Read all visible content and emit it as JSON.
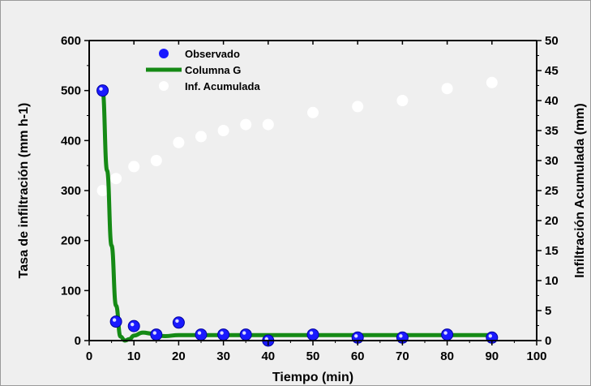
{
  "chart_data": {
    "type": "line",
    "xlabel": "Tiempo (min)",
    "ylabel_left": "Tasa de infiltración (mm h-1)",
    "ylabel_right": "Infiltración Acumulada (mm)",
    "xlim": [
      0,
      100
    ],
    "ylim_left": [
      0,
      600
    ],
    "ylim_right": [
      0,
      50
    ],
    "x_ticks": [
      "0",
      "10",
      "20",
      "30",
      "40",
      "50",
      "60",
      "70",
      "80",
      "90",
      "100"
    ],
    "y_left_ticks": [
      "0",
      "100",
      "200",
      "300",
      "400",
      "500",
      "600"
    ],
    "y_right_ticks": [
      "0",
      "5",
      "10",
      "15",
      "20",
      "25",
      "30",
      "35",
      "40",
      "45",
      "50"
    ],
    "grid": false,
    "legend_position": "top-left",
    "legend": [
      "Observado",
      "Columna G",
      "Inf. Acumulada"
    ],
    "series": [
      {
        "name": "Observado",
        "kind": "scatter",
        "axis": "left",
        "color": "#1a1aff",
        "x": [
          3,
          6,
          10,
          15,
          20,
          25,
          30,
          35,
          40,
          50,
          60,
          70,
          80,
          90
        ],
        "y": [
          500,
          38,
          29,
          12,
          36,
          12,
          12,
          12,
          0,
          12,
          6,
          6,
          12,
          6
        ]
      },
      {
        "name": "Columna G",
        "kind": "line",
        "axis": "left",
        "color": "#158a15",
        "x": [
          3,
          4,
          5,
          6,
          7,
          8,
          9,
          10,
          12,
          14,
          15,
          17,
          20,
          25,
          30,
          40,
          50,
          60,
          70,
          80,
          90
        ],
        "y": [
          500,
          340,
          190,
          70,
          8,
          0,
          3,
          10,
          16,
          14,
          10,
          9,
          11,
          11,
          11,
          11,
          11,
          11,
          11,
          11,
          11
        ]
      },
      {
        "name": "Inf. Acumulada",
        "kind": "scatter",
        "axis": "right",
        "color": "#ffffff",
        "x": [
          3,
          6,
          10,
          15,
          20,
          25,
          30,
          35,
          40,
          50,
          60,
          70,
          80,
          90
        ],
        "y": [
          25,
          27,
          29,
          30,
          33,
          34,
          35,
          36,
          36,
          38,
          39,
          40,
          42,
          43
        ]
      }
    ]
  }
}
